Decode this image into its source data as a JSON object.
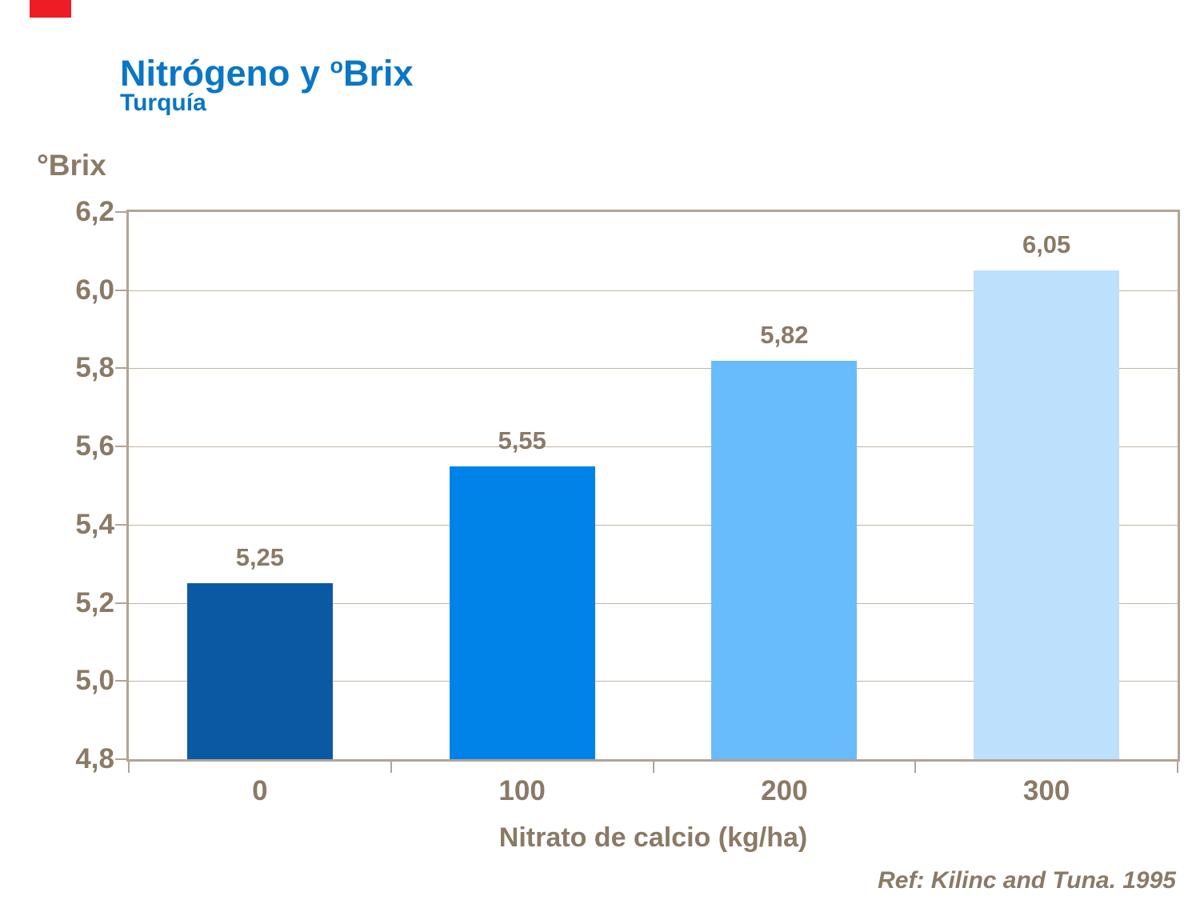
{
  "header": {
    "title_main": "Nitrógeno y ",
    "title_sup": "o",
    "title_tail": "Brix",
    "subtitle": "Turquía"
  },
  "footer": {
    "reference": "Ref: Kilinc and Tuna. 1995"
  },
  "colors": {
    "title_blue": "#0A76C6",
    "text_brown": "#8A7A66",
    "axis_tan": "#B2A496",
    "gridline_tan": "#C1B4A4",
    "flag_red": "#EE1C25"
  },
  "chart_data": {
    "type": "bar",
    "title": "Nitrógeno y ºBrix",
    "subtitle": "Turquía",
    "categories": [
      "0",
      "100",
      "200",
      "300"
    ],
    "values": [
      5.25,
      5.55,
      5.82,
      6.05
    ],
    "value_labels": [
      "5,25",
      "5,55",
      "5,82",
      "6,05"
    ],
    "bar_colors": [
      "#0B59A2",
      "#0083E8",
      "#68BCFB",
      "#BDE0FC"
    ],
    "xlabel": "Nitrato de calcio (kg/ha)",
    "ylabel": "°Brix",
    "ylim": [
      4.8,
      6.2
    ],
    "ytick_step": 0.2,
    "ytick_labels": [
      "6,2",
      "6,0",
      "5,8",
      "5,6",
      "5,4",
      "5,2",
      "5,0",
      "4,8"
    ],
    "grid": true,
    "legend": "none",
    "plot_border": "all-sides"
  }
}
